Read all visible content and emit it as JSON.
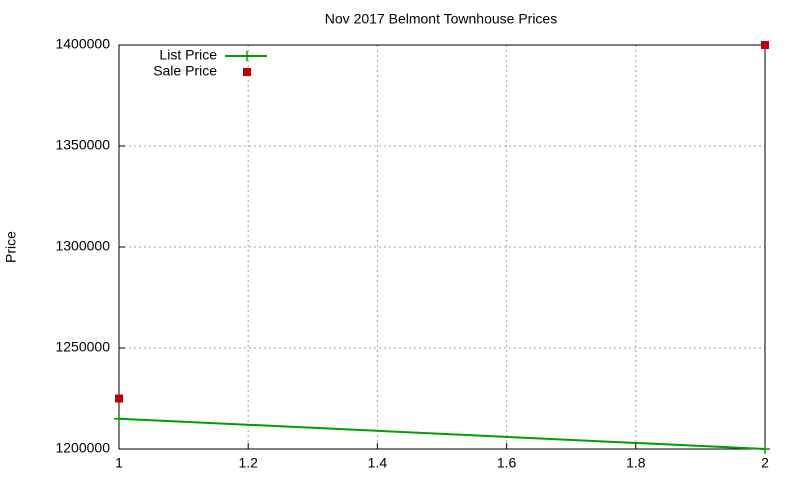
{
  "chart_data": {
    "type": "line",
    "title": "Nov 2017 Belmont Townhouse Prices",
    "y_label": "Price",
    "x": [
      1,
      2
    ],
    "series": [
      {
        "name": "List Price",
        "color": "#009e00",
        "style": "linespoints",
        "values": [
          1215000,
          1200000
        ]
      },
      {
        "name": "Sale Price",
        "color": "#c00000",
        "style": "points",
        "values": [
          1225000,
          1400000
        ]
      }
    ],
    "xlim": [
      1,
      2
    ],
    "xticks": [
      1,
      1.2,
      1.4,
      1.6,
      1.8,
      2
    ],
    "ylim": [
      1200000,
      1400000
    ],
    "yticks": [
      1200000,
      1250000,
      1300000,
      1350000,
      1400000
    ],
    "grid": true,
    "legend": "top-left"
  }
}
